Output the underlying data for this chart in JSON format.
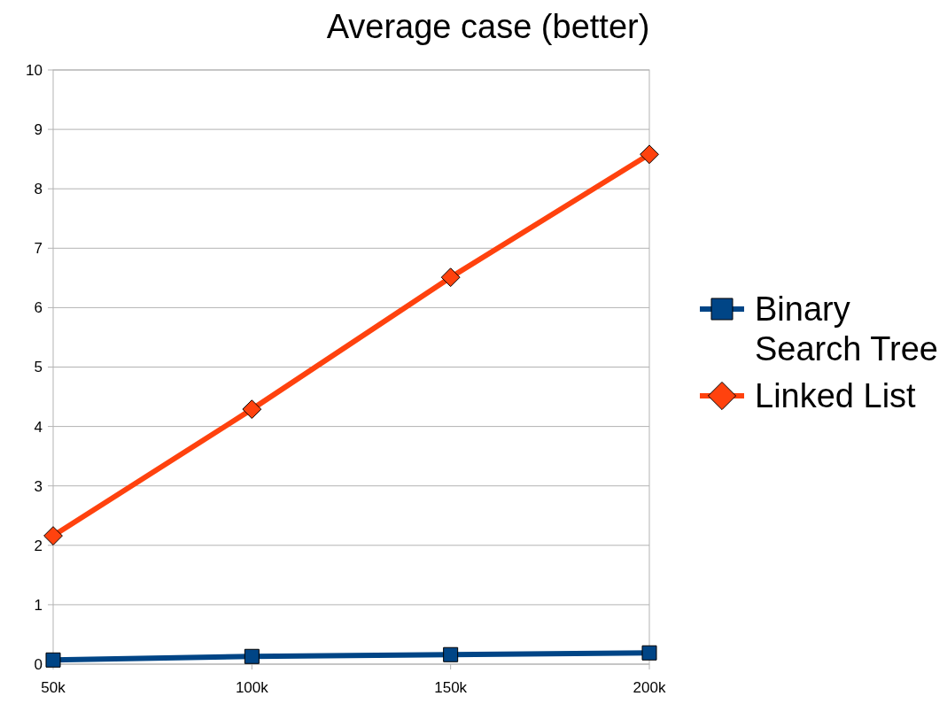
{
  "chart_data": {
    "type": "line",
    "title": "Average case (better)",
    "categories": [
      "50k",
      "100k",
      "150k",
      "200k"
    ],
    "series": [
      {
        "name": "Binary Search Tree",
        "color": "#004586",
        "marker": "square",
        "values": [
          0.07,
          0.13,
          0.16,
          0.19
        ]
      },
      {
        "name": "Linked List",
        "color": "#ff420e",
        "marker": "diamond",
        "values": [
          2.16,
          4.29,
          6.51,
          8.58
        ]
      }
    ],
    "ylim": [
      0,
      10
    ],
    "yticks": [
      0,
      1,
      2,
      3,
      4,
      5,
      6,
      7,
      8,
      9,
      10
    ],
    "grid": "y",
    "legend": "right",
    "line_style": "solid"
  }
}
